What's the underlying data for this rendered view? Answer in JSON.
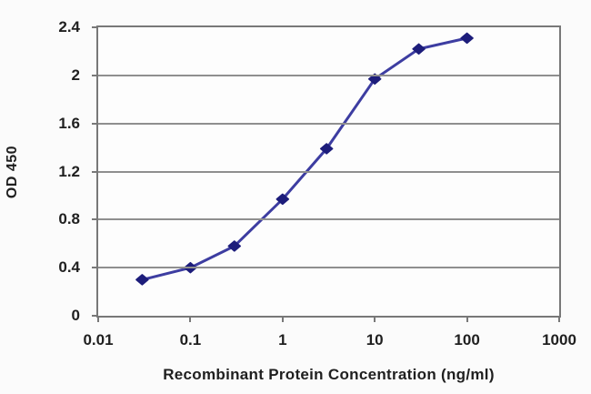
{
  "chart_data": {
    "type": "line",
    "title": "",
    "xlabel": "Recombinant Protein Concentration (ng/ml)",
    "ylabel": "OD 450",
    "x_scale": "log",
    "xlim": [
      0.01,
      1000
    ],
    "ylim": [
      0,
      2.4
    ],
    "x_tick_values": [
      0.01,
      0.1,
      1,
      10,
      100,
      1000
    ],
    "x_tick_labels": [
      "0.01",
      "0.1",
      "1",
      "10",
      "100",
      "1000"
    ],
    "y_tick_values": [
      0,
      0.4,
      0.8,
      1.2,
      1.6,
      2,
      2.4
    ],
    "y_tick_labels": [
      "0",
      "0.4",
      "0.8",
      "1.2",
      "1.6",
      "2",
      "2.4"
    ],
    "grid": "horizontal",
    "legend": "none",
    "series": [
      {
        "name": "OD 450",
        "x": [
          0.03,
          0.1,
          0.3,
          1,
          3,
          10,
          30,
          100
        ],
        "y": [
          0.3,
          0.4,
          0.58,
          0.97,
          1.39,
          1.97,
          2.22,
          2.31
        ],
        "marker": "diamond",
        "line_color": "#3d3da1",
        "marker_color": "#1d1d7b"
      }
    ],
    "colors": {
      "grid": "#8f8f8f",
      "border": "#787878",
      "text": "#1f1f1f",
      "plot_bg": "#fdfdfd",
      "page_bg": "#fbfbfb"
    }
  }
}
